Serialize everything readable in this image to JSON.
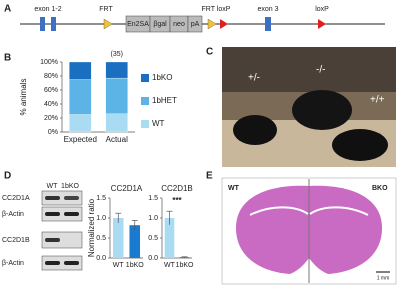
{
  "panel_labels": [
    "A",
    "B",
    "C",
    "D",
    "E"
  ],
  "construct": {
    "exon12": "exon 1-2",
    "frt": "FRT",
    "cassette": [
      "En2SA",
      "βgal",
      "neo",
      "pA"
    ],
    "frt_loxp": "FRT loxP",
    "exon3": "exon 3",
    "loxp": "loxP"
  },
  "photo_labels": [
    "+/-",
    "-/-",
    "+/+"
  ],
  "blot": {
    "lanes": [
      "WT",
      "1bKO"
    ],
    "rows": [
      "CC2D1A",
      "β-Actin",
      "CC2D1B",
      "β-Actin"
    ]
  },
  "brain": {
    "left": "WT",
    "right": "BKO",
    "scale": "1 mm"
  },
  "chart_data": [
    {
      "type": "stacked-bar",
      "ylabel": "% animals",
      "annotation": "(35)",
      "categories": [
        "Expected",
        "Actual"
      ],
      "series": [
        {
          "name": "WT",
          "color": "#a9dcf2",
          "values": [
            25,
            26
          ]
        },
        {
          "name": "1bHET",
          "color": "#5bb3e6",
          "values": [
            50,
            51
          ]
        },
        {
          "name": "1bKO",
          "color": "#1a6fc0",
          "values": [
            25,
            23
          ]
        }
      ],
      "ylim": [
        0,
        100
      ],
      "yticks": [
        {
          "value": 0,
          "label": "0%"
        },
        {
          "value": 20,
          "label": "20%"
        },
        {
          "value": 40,
          "label": "40%"
        },
        {
          "value": 60,
          "label": "60%"
        },
        {
          "value": 80,
          "label": "80%"
        },
        {
          "value": 100,
          "label": "100%"
        }
      ]
    },
    {
      "type": "bar",
      "title": "CC2D1A",
      "ylabel": "Normalized ratio",
      "categories": [
        "WT",
        "1bKO"
      ],
      "values": [
        1.0,
        0.82
      ],
      "errors": [
        0.12,
        0.12
      ],
      "colors": [
        "#a9dcf2",
        "#1a7ad0"
      ],
      "ylim": [
        0,
        1.5
      ],
      "yticks": [
        {
          "value": 0,
          "label": "0.0"
        },
        {
          "value": 0.5,
          "label": "0.5"
        },
        {
          "value": 1,
          "label": "1.0"
        },
        {
          "value": 1.5,
          "label": "1.5"
        }
      ]
    },
    {
      "type": "bar",
      "title": "CC2D1B",
      "annotation": "***",
      "categories": [
        "WT",
        "1bKO"
      ],
      "values": [
        1.0,
        0.02
      ],
      "errors": [
        0.17,
        0.01
      ],
      "colors": [
        "#a9dcf2",
        "#1a7ad0"
      ],
      "ylim": [
        0,
        1.5
      ],
      "yticks": [
        {
          "value": 0,
          "label": "0.0"
        },
        {
          "value": 0.5,
          "label": "0.5"
        },
        {
          "value": 1,
          "label": "1.0"
        },
        {
          "value": 1.5,
          "label": "1.5"
        }
      ]
    }
  ]
}
